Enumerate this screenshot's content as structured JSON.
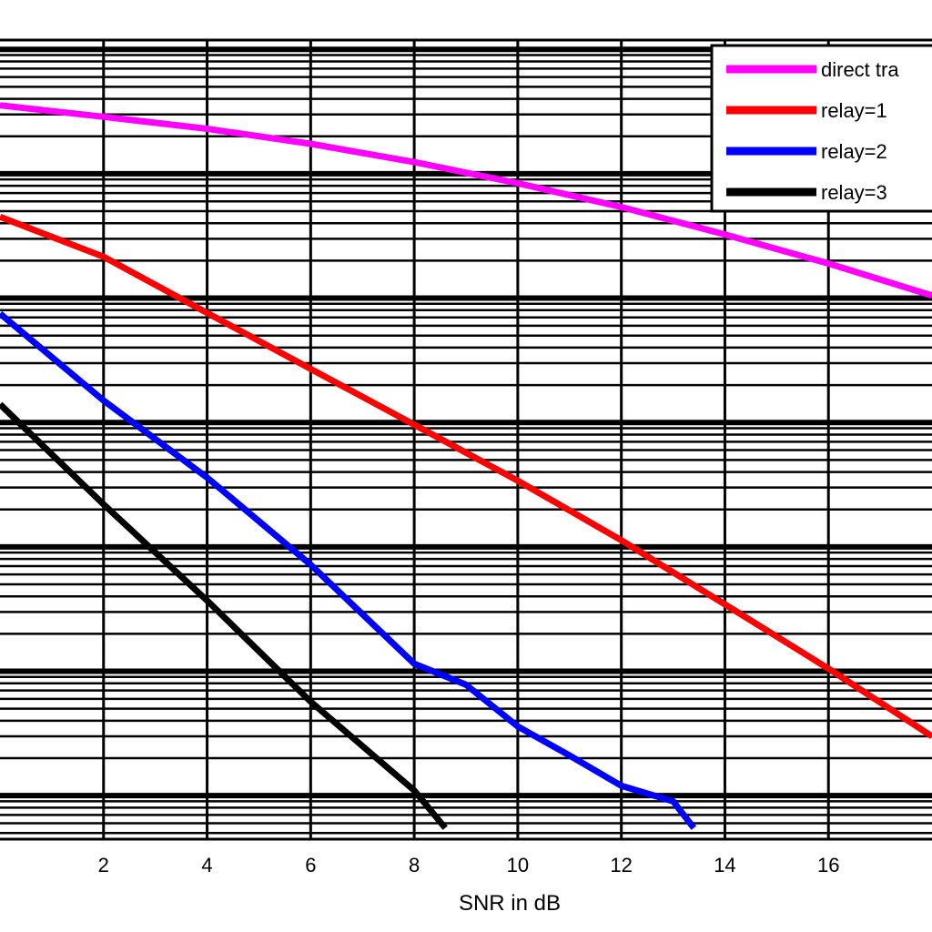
{
  "chart_data": {
    "type": "line",
    "title": "",
    "xlabel": "SNR in dB",
    "ylabel": "",
    "x_ticks": [
      2,
      4,
      6,
      8,
      10,
      12,
      14,
      16
    ],
    "xlim": [
      0,
      18
    ],
    "y_scale": "log",
    "grid": true,
    "legend_position": "top-right",
    "series": [
      {
        "name": "direct tra",
        "color": "#ff00ff",
        "x": [
          0,
          2,
          4,
          6,
          8,
          10,
          12,
          14,
          16,
          18
        ],
        "y": [
          0.355,
          0.287,
          0.23,
          0.174,
          0.124,
          0.084,
          0.054,
          0.0325,
          0.019,
          0.0105
        ]
      },
      {
        "name": "relay=1",
        "color": "#ff0000",
        "x": [
          0,
          2,
          4,
          6,
          8,
          10,
          12,
          14,
          16,
          18
        ],
        "y": [
          0.045,
          0.0215,
          0.0076,
          0.0027,
          0.00096,
          0.00034,
          0.000113,
          3.45e-05,
          1.05e-05,
          3e-06
        ]
      },
      {
        "name": "relay=2",
        "color": "#0000ff",
        "x": [
          0,
          2,
          4,
          6,
          8,
          9,
          10,
          11,
          12,
          13,
          13.4
        ],
        "y": [
          0.0075,
          0.0015,
          0.00036,
          7.2e-05,
          1.15e-05,
          7.8e-06,
          3.6e-06,
          2.1e-06,
          1.2e-06,
          9e-07,
          5.5e-07
        ]
      },
      {
        "name": "relay=3",
        "color": "#000000",
        "x": [
          0,
          2,
          4,
          6,
          8,
          8.6
        ],
        "y": [
          0.0014,
          0.00022,
          3.7e-05,
          5.7e-06,
          1.1e-06,
          5.5e-07
        ]
      }
    ],
    "legend": [
      "direct tra",
      "relay=1",
      "relay=2",
      "relay=3"
    ]
  }
}
